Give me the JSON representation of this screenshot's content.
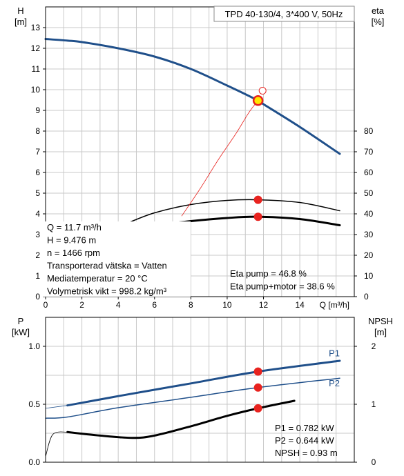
{
  "chart_data": [
    {
      "type": "line",
      "title": "TPD 40-130/4, 3*400 V, 50Hz",
      "xlabel": "Q [m³/h]",
      "ylabel_left_name": "H",
      "ylabel_left_unit": "[m]",
      "ylabel_right_name": "eta",
      "ylabel_right_unit": "[%]",
      "xlim": [
        0,
        17
      ],
      "xticks": [
        0,
        2,
        4,
        6,
        8,
        10,
        12,
        14
      ],
      "ylim": [
        0,
        14
      ],
      "yticks": [
        0,
        1,
        2,
        3,
        4,
        5,
        6,
        7,
        8,
        9,
        10,
        11,
        12,
        13
      ],
      "y2lim": [
        0,
        140
      ],
      "y2ticks": [
        0,
        10,
        20,
        30,
        40,
        50,
        60,
        70,
        80
      ],
      "grid": true,
      "series": [
        {
          "axis": "left",
          "color": "#1f4f8a",
          "width": 3,
          "x": [
            0,
            1.2,
            2,
            4,
            6,
            8,
            10,
            11.7,
            12,
            14,
            16.2
          ],
          "y": [
            12.45,
            12.37,
            12.3,
            12.0,
            11.6,
            11.0,
            10.2,
            9.476,
            9.3,
            8.2,
            6.9
          ]
        },
        {
          "axis": "left",
          "color": "#1f4f8a",
          "width": 1,
          "style": "dashed-extension",
          "x": [
            0,
            1.2
          ],
          "y": [
            12.45,
            12.37
          ]
        },
        {
          "axis": "right",
          "color": "#000000",
          "width": 1.5,
          "x": [
            4.5,
            6,
            8,
            10,
            11.7,
            14,
            16.2
          ],
          "y": [
            35.5,
            40.5,
            44.5,
            46.5,
            46.8,
            45.5,
            41.5
          ]
        },
        {
          "axis": "right",
          "color": "#000000",
          "width": 3,
          "x": [
            6.6,
            8,
            10,
            11.7,
            14,
            16.2
          ],
          "y": [
            35.0,
            36.5,
            38.0,
            38.6,
            37.5,
            34.5
          ]
        },
        {
          "axis": "left",
          "color": "#e8231f",
          "width": 0.8,
          "x": [
            7.5,
            8.5,
            9.5,
            10.5,
            11.2,
            11.7
          ],
          "y": [
            3.9,
            5.2,
            6.6,
            7.9,
            8.9,
            9.476
          ]
        }
      ],
      "operating_points": [
        {
          "axis": "left",
          "x": 11.7,
          "y": 9.476,
          "style": "yellow"
        },
        {
          "axis": "left",
          "x": 11.95,
          "y": 9.95,
          "style": "open"
        },
        {
          "axis": "right",
          "x": 11.7,
          "y": 46.8,
          "style": "red"
        },
        {
          "axis": "right",
          "x": 11.7,
          "y": 38.6,
          "style": "red"
        }
      ],
      "info_lines": [
        "Q = 11.7 m³/h",
        "H = 9.476 m",
        "n = 1466 rpm",
        "Transporterad vätska = Vatten",
        "Mediatemperatur = 20 °C",
        "Volymetrisk vikt = 998.2 kg/m³"
      ],
      "eta_lines": [
        "Eta pump = 46.8 %",
        "Eta pump+motor = 38.6 %"
      ]
    },
    {
      "type": "line",
      "ylabel_left_name": "P",
      "ylabel_left_unit": "[kW]",
      "ylabel_right_name": "NPSH",
      "ylabel_right_unit": "[m]",
      "xlim": [
        0,
        17
      ],
      "ylim": [
        0,
        1.25
      ],
      "yticks": [
        0.0,
        0.5,
        1.0
      ],
      "ytick_labels": [
        "0.0",
        "0.5",
        "1.0"
      ],
      "y2lim": [
        0,
        2.5
      ],
      "y2ticks": [
        0,
        1,
        2
      ],
      "grid": true,
      "series": [
        {
          "name": "P1",
          "axis": "left",
          "color": "#1f4f8a",
          "width": 3,
          "x": [
            1.2,
            4,
            8,
            11.7,
            16.2
          ],
          "y": [
            0.49,
            0.57,
            0.68,
            0.782,
            0.875
          ]
        },
        {
          "name": "P2",
          "axis": "left",
          "color": "#1f4f8a",
          "width": 1.5,
          "x": [
            0,
            1.2,
            4,
            8,
            11.7,
            16.2
          ],
          "y": [
            0.38,
            0.39,
            0.47,
            0.56,
            0.644,
            0.725
          ]
        },
        {
          "axis": "left",
          "color": "#1f4f8a",
          "width": 0.8,
          "x": [
            0,
            1.2
          ],
          "y": [
            0.465,
            0.49
          ]
        },
        {
          "axis": "right",
          "color": "#000000",
          "width": 3,
          "x": [
            1.2,
            3,
            4.8,
            6,
            8,
            10,
            11.7,
            13.7
          ],
          "y": [
            0.52,
            0.46,
            0.42,
            0.46,
            0.62,
            0.8,
            0.93,
            1.06
          ]
        },
        {
          "axis": "right",
          "color": "#000000",
          "width": 0.8,
          "x": [
            0,
            0.4,
            1.2
          ],
          "y": [
            0.1,
            0.48,
            0.52
          ]
        }
      ],
      "series_labels": [
        {
          "text": "P1",
          "x": 15.9,
          "y": 0.915
        },
        {
          "text": "P2",
          "x": 15.9,
          "y": 0.655
        }
      ],
      "operating_points": [
        {
          "axis": "left",
          "x": 11.7,
          "y": 0.782,
          "style": "red"
        },
        {
          "axis": "left",
          "x": 11.7,
          "y": 0.644,
          "style": "red"
        },
        {
          "axis": "right",
          "x": 11.7,
          "y": 0.93,
          "style": "red"
        }
      ],
      "info_lines": [
        "P1 = 0.782 kW",
        "P2 = 0.644 kW",
        "NPSH = 0.93 m"
      ]
    }
  ]
}
